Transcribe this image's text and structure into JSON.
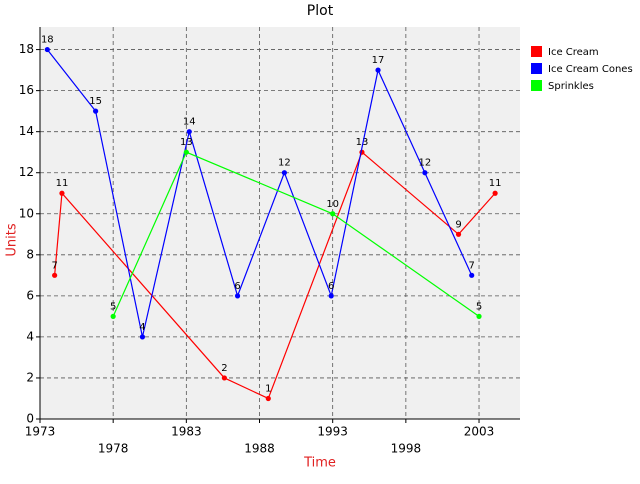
{
  "chart_data": {
    "type": "line",
    "title": "Plot",
    "x_label": "Time",
    "y_label": "Units",
    "xlim": [
      1973,
      2005.8
    ],
    "xticks": [
      1973,
      1978,
      1983,
      1988,
      1993,
      1998,
      2003
    ],
    "ylim": [
      0,
      19.1
    ],
    "yticks": [
      0,
      2,
      4,
      6,
      8,
      10,
      12,
      14,
      16,
      18
    ],
    "grid": true,
    "legend": "right",
    "series": [
      {
        "name": "Ice Cream",
        "color": "#ff0000",
        "x": [
          1974.0,
          1974.5,
          1985.6,
          1988.6,
          1995.0,
          2001.6,
          2004.1
        ],
        "values": [
          7,
          11,
          2,
          1,
          13,
          9,
          11
        ]
      },
      {
        "name": "Ice Cream Cones",
        "color": "#0000ff",
        "x": [
          1973.5,
          1976.8,
          1980.0,
          1983.2,
          1986.5,
          1989.7,
          1992.9,
          1996.1,
          1999.3,
          2002.5
        ],
        "values": [
          18,
          15,
          4,
          14,
          6,
          12,
          6,
          17,
          12,
          7
        ]
      },
      {
        "name": "Sprinkles",
        "color": "#00ff00",
        "x": [
          1978.0,
          1983.0,
          1993.0,
          2003.0
        ],
        "values": [
          5,
          13,
          10,
          5
        ]
      }
    ]
  }
}
